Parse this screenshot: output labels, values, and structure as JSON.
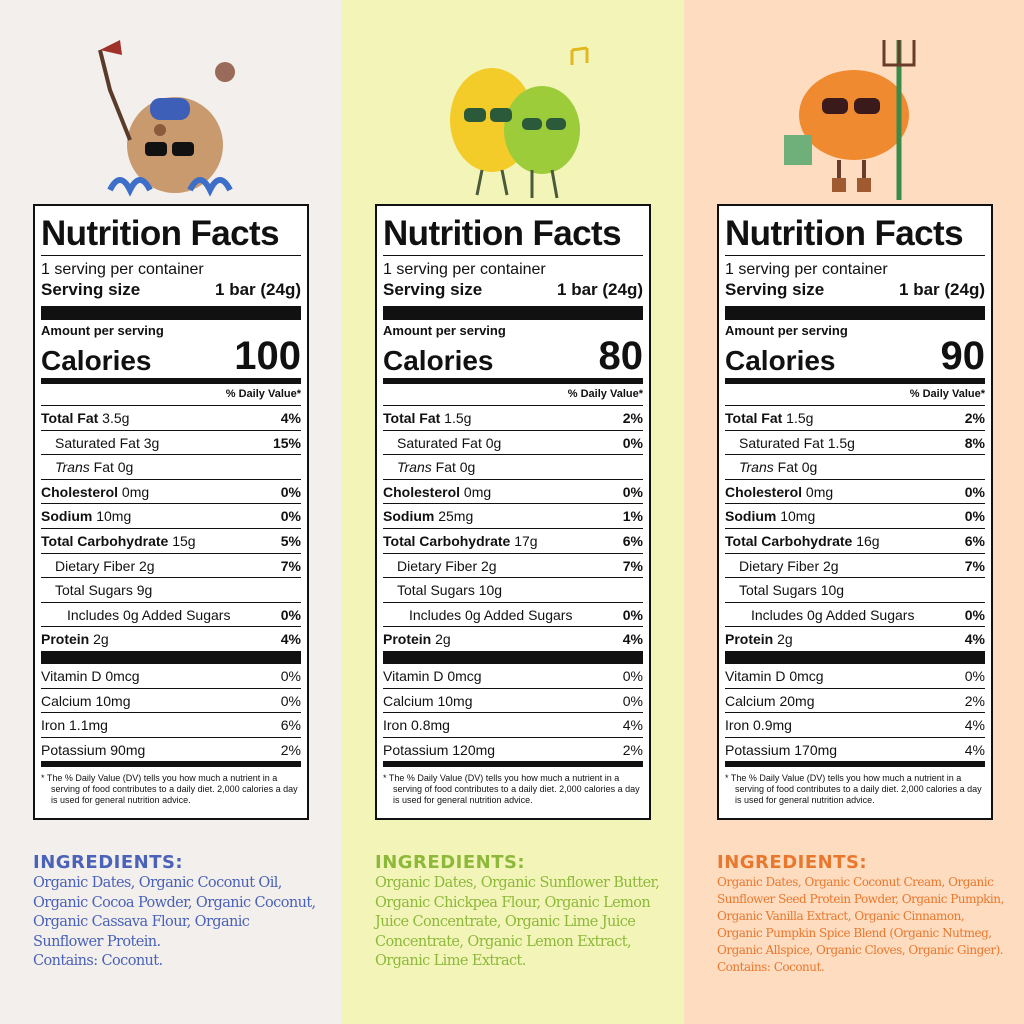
{
  "label_common": {
    "title": "Nutrition Facts",
    "servings": "1 serving per container",
    "serving_size_label": "Serving size",
    "serving_size": "1 bar (24g)",
    "amount_per_serving": "Amount per serving",
    "calories_label": "Calories",
    "daily_value_header": "% Daily Value*",
    "footnote": "* The % Daily Value (DV) tells you how much a nutrient in a serving of food contributes to a daily diet. 2,000 calories a day is used for general nutrition advice.",
    "ingredients_heading": "INGREDIENTS:"
  },
  "products": [
    {
      "character_icon": "coconut-character-icon",
      "accent": "#4a62b8",
      "calories": "100",
      "rows": [
        {
          "bold": "Total Fat",
          "rest": " 3.5g",
          "pct": "4%",
          "style": "b0"
        },
        {
          "bold": "",
          "rest": "Saturated Fat 3g",
          "pct": "15%",
          "style": "i1"
        },
        {
          "bold": "",
          "italic": "Trans",
          "rest": " Fat 0g",
          "pct": "",
          "style": "i1"
        },
        {
          "bold": "Cholesterol",
          "rest": " 0mg",
          "pct": "0%",
          "style": "b0"
        },
        {
          "bold": "Sodium",
          "rest": " 10mg",
          "pct": "0%",
          "style": "b0"
        },
        {
          "bold": "Total Carbohydrate",
          "rest": " 15g",
          "pct": "5%",
          "style": "b0"
        },
        {
          "bold": "",
          "rest": "Dietary Fiber 2g",
          "pct": "7%",
          "style": "i1"
        },
        {
          "bold": "",
          "rest": "Total Sugars 9g",
          "pct": "",
          "style": "i1"
        },
        {
          "bold": "",
          "rest": "Includes 0g Added Sugars",
          "pct": "0%",
          "style": "i2"
        },
        {
          "bold": "Protein",
          "rest": " 2g",
          "pct": "4%",
          "style": "b0"
        }
      ],
      "vitamins": [
        {
          "name": "Vitamin D 0mcg",
          "pct": "0%"
        },
        {
          "name": "Calcium 10mg",
          "pct": "0%"
        },
        {
          "name": "Iron 1.1mg",
          "pct": "6%"
        },
        {
          "name": "Potassium 90mg",
          "pct": "2%"
        }
      ],
      "ingredients": "Organic Dates, Organic Coconut Oil, Organic Cocoa Powder, Organic Coconut, Organic Cassava Flour, Organic Sunflower Protein.",
      "contains": "Contains: Coconut."
    },
    {
      "character_icon": "lemon-lime-character-icon",
      "accent": "#8db83a",
      "calories": "80",
      "rows": [
        {
          "bold": "Total Fat",
          "rest": " 1.5g",
          "pct": "2%",
          "style": "b0"
        },
        {
          "bold": "",
          "rest": "Saturated Fat 0g",
          "pct": "0%",
          "style": "i1"
        },
        {
          "bold": "",
          "italic": "Trans",
          "rest": " Fat 0g",
          "pct": "",
          "style": "i1"
        },
        {
          "bold": "Cholesterol",
          "rest": " 0mg",
          "pct": "0%",
          "style": "b0"
        },
        {
          "bold": "Sodium",
          "rest": " 25mg",
          "pct": "1%",
          "style": "b0"
        },
        {
          "bold": "Total Carbohydrate",
          "rest": " 17g",
          "pct": "6%",
          "style": "b0"
        },
        {
          "bold": "",
          "rest": "Dietary Fiber 2g",
          "pct": "7%",
          "style": "i1"
        },
        {
          "bold": "",
          "rest": "Total Sugars 10g",
          "pct": "",
          "style": "i1"
        },
        {
          "bold": "",
          "rest": "Includes 0g Added Sugars",
          "pct": "0%",
          "style": "i2"
        },
        {
          "bold": "Protein",
          "rest": " 2g",
          "pct": "4%",
          "style": "b0"
        }
      ],
      "vitamins": [
        {
          "name": "Vitamin D 0mcg",
          "pct": "0%"
        },
        {
          "name": "Calcium 10mg",
          "pct": "0%"
        },
        {
          "name": "Iron 0.8mg",
          "pct": "4%"
        },
        {
          "name": "Potassium 120mg",
          "pct": "2%"
        }
      ],
      "ingredients": "Organic Dates, Organic Sunflower Butter, Organic Chickpea Flour, Organic Lemon Juice Concentrate, Organic Lime Juice Concentrate, Organic Lemon Extract, Organic Lime Extract.",
      "contains": ""
    },
    {
      "character_icon": "pumpkin-farmer-character-icon",
      "accent": "#e8782e",
      "calories": "90",
      "rows": [
        {
          "bold": "Total Fat",
          "rest": " 1.5g",
          "pct": "2%",
          "style": "b0"
        },
        {
          "bold": "",
          "rest": "Saturated Fat 1.5g",
          "pct": "8%",
          "style": "i1"
        },
        {
          "bold": "",
          "italic": "Trans",
          "rest": " Fat 0g",
          "pct": "",
          "style": "i1"
        },
        {
          "bold": "Cholesterol",
          "rest": " 0mg",
          "pct": "0%",
          "style": "b0"
        },
        {
          "bold": "Sodium",
          "rest": " 10mg",
          "pct": "0%",
          "style": "b0"
        },
        {
          "bold": "Total Carbohydrate",
          "rest": " 16g",
          "pct": "6%",
          "style": "b0"
        },
        {
          "bold": "",
          "rest": "Dietary Fiber 2g",
          "pct": "7%",
          "style": "i1"
        },
        {
          "bold": "",
          "rest": "Total Sugars 10g",
          "pct": "",
          "style": "i1"
        },
        {
          "bold": "",
          "rest": "Includes 0g Added Sugars",
          "pct": "0%",
          "style": "i2"
        },
        {
          "bold": "Protein",
          "rest": " 2g",
          "pct": "4%",
          "style": "b0"
        }
      ],
      "vitamins": [
        {
          "name": "Vitamin D 0mcg",
          "pct": "0%"
        },
        {
          "name": "Calcium 20mg",
          "pct": "2%"
        },
        {
          "name": "Iron 0.9mg",
          "pct": "4%"
        },
        {
          "name": "Potassium 170mg",
          "pct": "4%"
        }
      ],
      "ingredients": "Organic Dates, Organic Coconut Cream, Organic Sunflower Seed Protein Powder, Organic Pumpkin, Organic Vanilla Extract, Organic Cinnamon, Organic Pumpkin Spice Blend (Organic Nutmeg, Organic Allspice, Organic Cloves, Organic Ginger).",
      "contains": "Contains: Coconut."
    }
  ]
}
